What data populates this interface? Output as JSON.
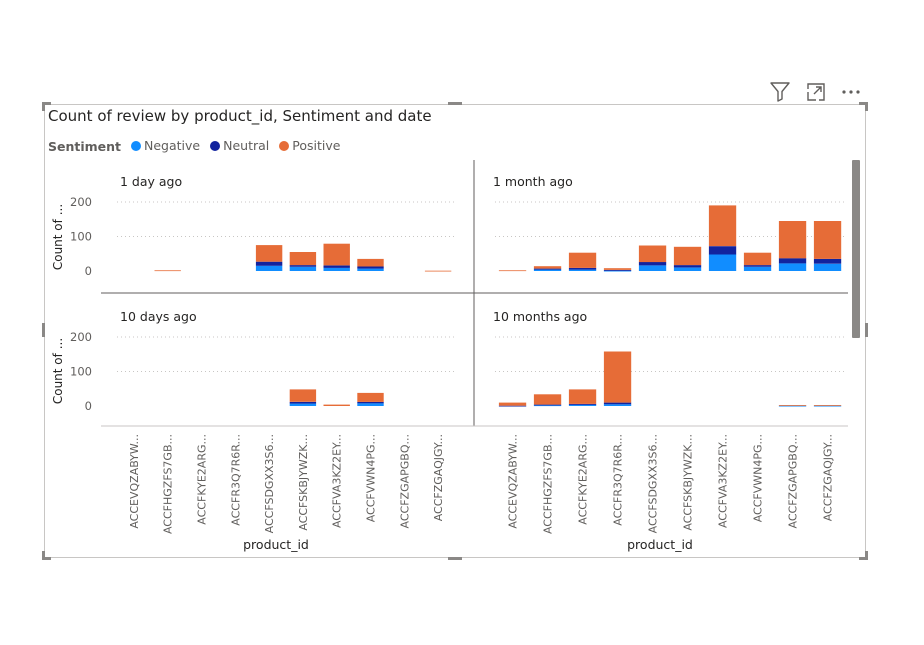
{
  "chart_data": {
    "type": "bar",
    "stacked": true,
    "title": "Count of review by product_id, Sentiment and date",
    "legend": {
      "title": "Sentiment",
      "placement": "top-left",
      "items": [
        {
          "name": "Negative",
          "color": "#118DFF"
        },
        {
          "name": "Neutral",
          "color": "#12239E"
        },
        {
          "name": "Positive",
          "color": "#E66C37"
        }
      ]
    },
    "xlabel": "product_id",
    "ylabel": "Count of ...",
    "yticks": [
      0,
      100,
      200
    ],
    "ylim": [
      -30,
      230
    ],
    "grid": true,
    "categories": [
      "ACCEVQZABYW...",
      "ACCFHGZFS7GB...",
      "ACCFKYE2ARG...",
      "ACCFR3Q7R6R...",
      "ACCFSDGXX3S6...",
      "ACCFSKBJYWZK...",
      "ACCFVA3KZ2EY...",
      "ACCFVWN4PG...",
      "ACCFZGAPGBQ...",
      "ACCFZGAQJGY..."
    ],
    "panels": [
      {
        "label": "1 day ago",
        "negative": [
          0,
          0,
          0,
          0,
          15,
          12,
          9,
          7,
          0,
          0
        ],
        "neutral": [
          0,
          0,
          0,
          0,
          12,
          5,
          7,
          6,
          0,
          0
        ],
        "positive": [
          0,
          2,
          0,
          0,
          48,
          38,
          63,
          22,
          0,
          1
        ]
      },
      {
        "label": "1 month ago",
        "negative": [
          0,
          4,
          4,
          1,
          16,
          10,
          48,
          12,
          22,
          21
        ],
        "neutral": [
          0,
          3,
          5,
          2,
          10,
          7,
          24,
          5,
          15,
          14
        ],
        "positive": [
          2,
          7,
          44,
          5,
          48,
          53,
          118,
          36,
          108,
          110
        ]
      },
      {
        "label": "10 days ago",
        "negative": [
          0,
          0,
          0,
          0,
          0,
          7,
          0,
          8,
          0,
          0
        ],
        "neutral": [
          0,
          0,
          0,
          0,
          0,
          5,
          0,
          4,
          0,
          0
        ],
        "positive": [
          0,
          0,
          0,
          0,
          0,
          36,
          4,
          26,
          0,
          0
        ]
      },
      {
        "label": "10 months ago",
        "negative": [
          0,
          2,
          3,
          5,
          0,
          0,
          0,
          0,
          1,
          1
        ],
        "neutral": [
          1,
          2,
          3,
          5,
          0,
          0,
          0,
          0,
          0,
          0
        ],
        "positive": [
          9,
          30,
          42,
          148,
          0,
          0,
          0,
          0,
          2,
          2
        ]
      }
    ]
  },
  "colors": {
    "negative": "#118DFF",
    "neutral": "#12239E",
    "positive": "#E66C37",
    "gridline": "#c8c6c4",
    "divider": "#605e5c",
    "text": "#252423",
    "subtext": "#605e5c"
  },
  "header_icons": [
    "filter-icon",
    "focus-mode-icon",
    "more-options-icon"
  ]
}
